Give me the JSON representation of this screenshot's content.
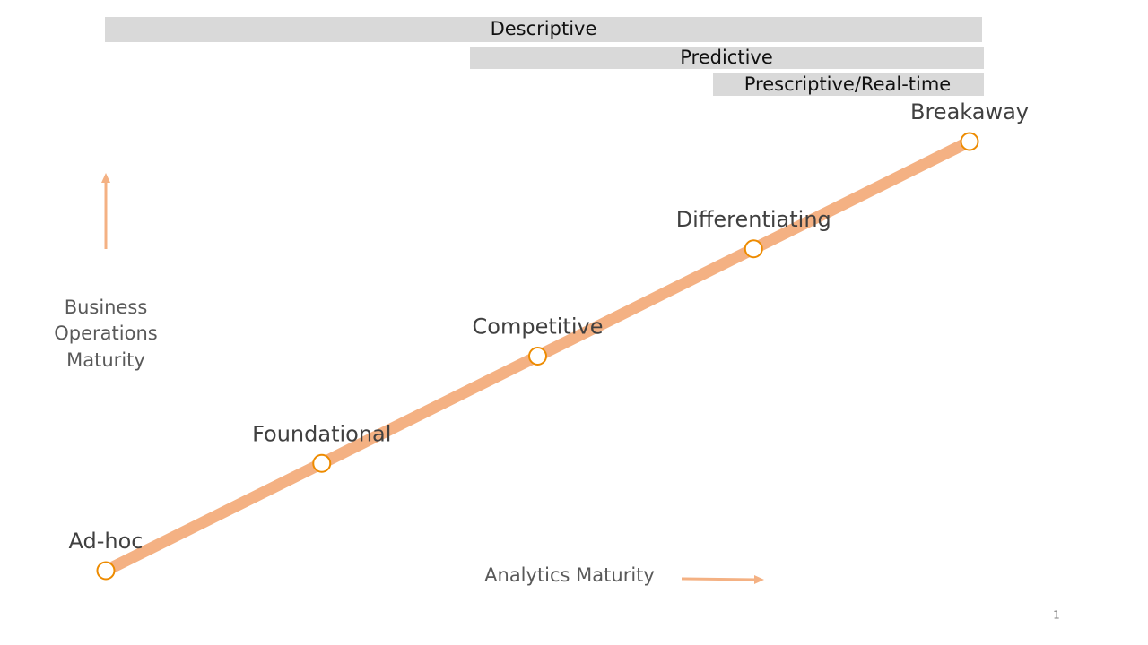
{
  "bars": [
    {
      "label": "Descriptive"
    },
    {
      "label": "Predictive"
    },
    {
      "label": "Prescriptive/Real-time"
    }
  ],
  "stages": [
    {
      "label": "Ad-hoc"
    },
    {
      "label": "Foundational"
    },
    {
      "label": "Competitive"
    },
    {
      "label": "Differentiating"
    },
    {
      "label": "Breakaway"
    }
  ],
  "y_axis_label": [
    "Business",
    "Operations",
    "Maturity"
  ],
  "x_axis_label": "Analytics Maturity",
  "page_number": "1"
}
